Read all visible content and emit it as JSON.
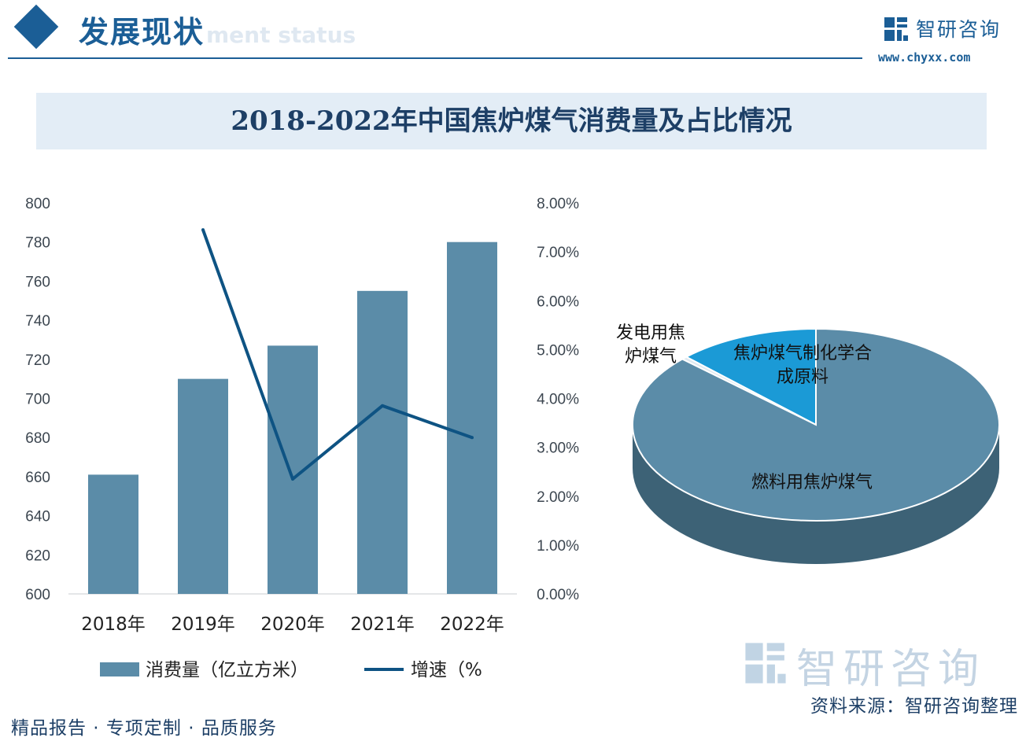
{
  "header": {
    "section_title": "发展现状",
    "section_subtitle": "ment status",
    "brand_name": "智研咨询",
    "brand_url": "www.chyxx.com"
  },
  "colors": {
    "bar": "#5b8ca8",
    "line": "#0e5383",
    "pie_main": "#5b8ca8",
    "pie_main_side": "#3d6276",
    "pie_chem": "#1b9ad6",
    "pie_power": "#dfe9f0",
    "brand": "#1b5e96"
  },
  "chart_data": [
    {
      "type": "bar",
      "title": "2018-2022年中国焦炉煤气消费量及占比情况",
      "categories": [
        "2018年",
        "2019年",
        "2020年",
        "2021年",
        "2022年"
      ],
      "series": [
        {
          "name": "消费量（亿立方米）",
          "type": "bar",
          "axis": "left",
          "values": [
            661,
            710,
            727,
            755,
            780
          ]
        },
        {
          "name": "增速（%",
          "type": "line",
          "axis": "right",
          "values": [
            null,
            7.45,
            2.35,
            3.85,
            3.2
          ]
        }
      ],
      "ylim_left": [
        600,
        800
      ],
      "yticks_left": [
        "600",
        "620",
        "640",
        "660",
        "680",
        "700",
        "720",
        "740",
        "760",
        "780",
        "800"
      ],
      "ylim_right": [
        0,
        8
      ],
      "yticks_right": [
        "0.00%",
        "1.00%",
        "2.00%",
        "3.00%",
        "4.00%",
        "5.00%",
        "6.00%",
        "7.00%",
        "8.00%"
      ],
      "legend": "bottom",
      "grid": false
    },
    {
      "type": "pie",
      "labels": [
        "燃料用焦炉煤气",
        "发电用焦炉煤气",
        "焦炉煤气制化学合成原料"
      ],
      "label_lines": [
        [
          "燃料用焦炉煤气"
        ],
        [
          "发电用焦",
          "炉煤气"
        ],
        [
          "焦炉煤气制化学合",
          "成原料"
        ]
      ],
      "values": [
        87,
        0.5,
        12.5
      ]
    }
  ],
  "footer": {
    "left": "精品报告 · 专项定制 · 品质服务",
    "source": "资料来源：智研咨询整理",
    "watermark": "智研咨询"
  }
}
